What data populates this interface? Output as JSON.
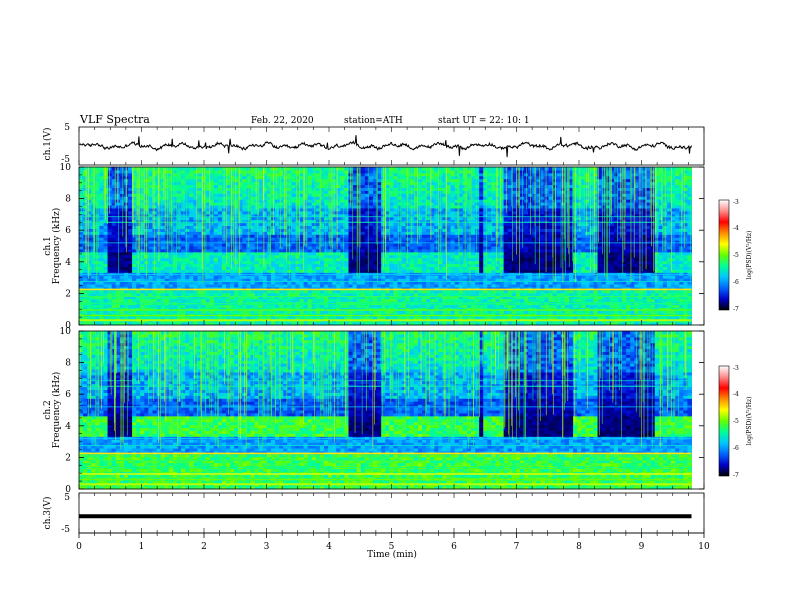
{
  "header": {
    "title": "VLF  Spectra",
    "date": "Feb. 22, 2020",
    "station": "station=ATH",
    "start_ut": "start  UT  =   22: 10: 1"
  },
  "chart_data": [
    {
      "type": "line",
      "panel": "ch1-waveform",
      "ylabel": "ch.1(V)",
      "ylim": [
        -5,
        5
      ],
      "yticks": [
        "5",
        "-5"
      ],
      "xlim": [
        0,
        10
      ],
      "color": "#000000",
      "note_level": 0
    },
    {
      "type": "heatmap",
      "panel": "ch1-spectrogram",
      "ylabel_top": "ch.1",
      "ylabel": "Frequency  (kHz)",
      "ylim": [
        0,
        10
      ],
      "yticks": [
        "0",
        "2",
        "4",
        "6",
        "8",
        "10"
      ],
      "xlim": [
        0,
        9.8
      ],
      "quiet_intervals_min": [
        [
          0.48,
          0.82
        ],
        [
          4.28,
          4.84
        ],
        [
          6.38,
          6.5
        ],
        [
          6.82,
          7.92
        ],
        [
          8.3,
          9.2
        ]
      ],
      "colorbar": {
        "label": "log(PSD)(V²/Hz)",
        "range": [
          -7,
          -3
        ],
        "ticks": [
          "-3",
          "-4",
          "-5",
          "-6",
          "-7"
        ],
        "colors": [
          "#000000",
          "#0000c8",
          "#0064ff",
          "#00c8ff",
          "#00ff96",
          "#64ff00",
          "#ffff00",
          "#ff8c00",
          "#ff0000",
          "#ff8c8c",
          "#ffffff"
        ]
      }
    },
    {
      "type": "heatmap",
      "panel": "ch2-spectrogram",
      "ylabel_top": "ch.2",
      "ylabel": "Frequency  (kHz)",
      "ylim": [
        0,
        10
      ],
      "yticks": [
        "0",
        "2",
        "4",
        "6",
        "8",
        "10"
      ],
      "xlim": [
        0,
        9.8
      ],
      "quiet_intervals_min": [
        [
          0.48,
          0.82
        ],
        [
          4.28,
          4.84
        ],
        [
          6.38,
          6.5
        ],
        [
          6.82,
          7.92
        ],
        [
          8.3,
          9.2
        ]
      ],
      "colorbar": {
        "label": "log(PSD)(V²/Hz)",
        "range": [
          -7,
          -3
        ],
        "ticks": [
          "-3",
          "-4",
          "-5",
          "-6",
          "-7"
        ]
      }
    },
    {
      "type": "line",
      "panel": "ch3-waveform",
      "ylabel": "ch.3(V)",
      "ylim": [
        -5,
        5
      ],
      "yticks": [
        "5",
        "-5"
      ],
      "xlim": [
        0,
        10
      ],
      "color": "#000000",
      "level": -0.8
    }
  ],
  "x_axis": {
    "label": "Time  (min)",
    "ticks": [
      "0",
      "1",
      "2",
      "3",
      "4",
      "5",
      "6",
      "7",
      "8",
      "9",
      "10"
    ]
  }
}
